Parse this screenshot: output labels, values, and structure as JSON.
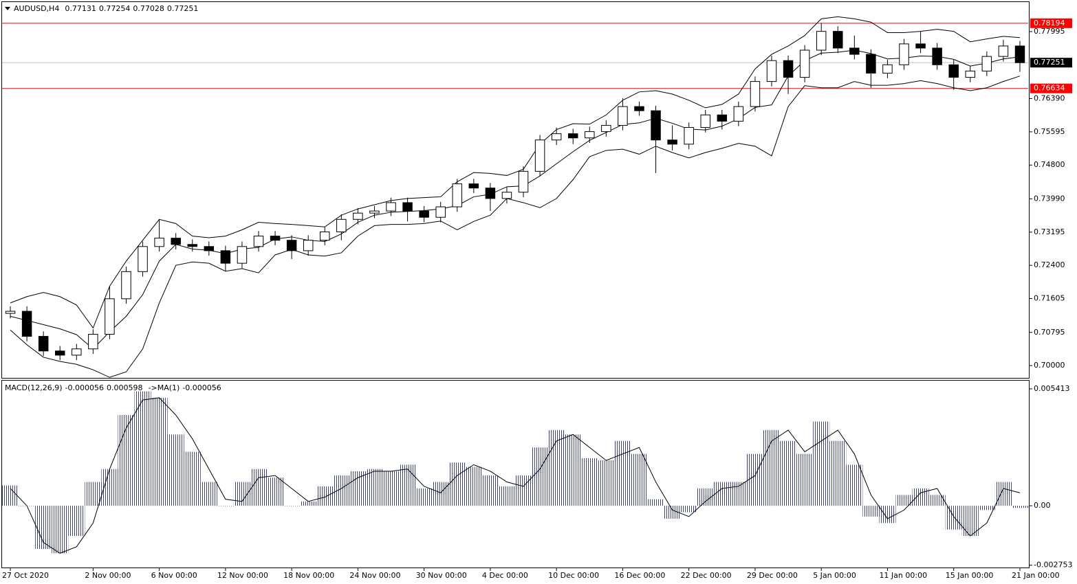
{
  "chart_data": [
    {
      "type": "candlestick",
      "title": "AUDUSD,H4",
      "quote": [
        0.77131,
        0.77254,
        0.77028,
        0.77251
      ],
      "categories": [
        "27 Oct 2020",
        null,
        null,
        null,
        null,
        "2 Nov 00:00",
        null,
        null,
        null,
        "6 Nov 00:00",
        null,
        null,
        null,
        "12 Nov 00:00",
        null,
        null,
        null,
        "18 Nov 00:00",
        null,
        null,
        null,
        "24 Nov 00:00",
        null,
        null,
        null,
        "30 Nov 00:00",
        null,
        null,
        null,
        "4 Dec 00:00",
        null,
        null,
        null,
        "10 Dec 00:00",
        null,
        null,
        null,
        "16 Dec 00:00",
        null,
        null,
        null,
        "22 Dec 00:00",
        null,
        null,
        null,
        "29 Dec 00:00",
        null,
        null,
        null,
        "5 Jan 00:00",
        null,
        null,
        null,
        "11 Jan 00:00",
        null,
        null,
        null,
        "15 Jan 00:00",
        null,
        null,
        null,
        "21 Jan 00:00"
      ],
      "open": [
        0.7125,
        0.713,
        0.707,
        0.7035,
        0.7025,
        0.704,
        0.7075,
        0.716,
        0.7225,
        0.7285,
        0.7305,
        0.729,
        0.7285,
        0.7275,
        0.7245,
        0.7285,
        0.731,
        0.73,
        0.7275,
        0.73,
        0.732,
        0.735,
        0.7365,
        0.737,
        0.739,
        0.737,
        0.7355,
        0.738,
        0.7435,
        0.7425,
        0.74,
        0.7415,
        0.7465,
        0.754,
        0.7555,
        0.7545,
        0.756,
        0.7575,
        0.762,
        0.761,
        0.754,
        0.753,
        0.757,
        0.76,
        0.7585,
        0.762,
        0.768,
        0.773,
        0.769,
        0.7755,
        0.78,
        0.776,
        0.7745,
        0.77,
        0.772,
        0.777,
        0.776,
        0.772,
        0.769,
        0.7705,
        0.774,
        0.7765
      ],
      "high": [
        0.7142,
        0.7142,
        0.7082,
        0.7047,
        0.7052,
        0.7087,
        0.719,
        0.7237,
        0.7297,
        0.735,
        0.7317,
        0.7302,
        0.7297,
        0.7287,
        0.7297,
        0.7322,
        0.7322,
        0.7312,
        0.7312,
        0.7332,
        0.7362,
        0.7377,
        0.7382,
        0.7402,
        0.7402,
        0.7382,
        0.7392,
        0.7447,
        0.7447,
        0.7437,
        0.7427,
        0.7477,
        0.7552,
        0.757,
        0.7567,
        0.7572,
        0.7587,
        0.764,
        0.7632,
        0.7622,
        0.7575,
        0.7582,
        0.7612,
        0.7612,
        0.7632,
        0.7692,
        0.7742,
        0.7742,
        0.7767,
        0.782,
        0.7812,
        0.779,
        0.7757,
        0.7732,
        0.7782,
        0.78,
        0.7772,
        0.7732,
        0.7717,
        0.7752,
        0.778,
        0.7777
      ],
      "low": [
        0.7113,
        0.7058,
        0.7023,
        0.7013,
        0.7013,
        0.7028,
        0.7063,
        0.7148,
        0.7213,
        0.7273,
        0.7278,
        0.7273,
        0.7263,
        0.7225,
        0.7233,
        0.7273,
        0.7288,
        0.7255,
        0.7263,
        0.7288,
        0.73,
        0.7338,
        0.7353,
        0.7358,
        0.7345,
        0.7343,
        0.7343,
        0.7368,
        0.7413,
        0.737,
        0.7388,
        0.7403,
        0.7453,
        0.7528,
        0.753,
        0.7533,
        0.7548,
        0.7563,
        0.7598,
        0.7461,
        0.7515,
        0.7518,
        0.7558,
        0.7565,
        0.7573,
        0.7608,
        0.7668,
        0.765,
        0.7678,
        0.7743,
        0.7748,
        0.7733,
        0.7665,
        0.7688,
        0.7708,
        0.7748,
        0.7708,
        0.766,
        0.7678,
        0.7693,
        0.7728,
        0.7703
      ],
      "close": [
        0.713,
        0.707,
        0.7035,
        0.7025,
        0.704,
        0.7075,
        0.716,
        0.7225,
        0.7285,
        0.7305,
        0.729,
        0.7285,
        0.7275,
        0.7245,
        0.7285,
        0.731,
        0.73,
        0.7275,
        0.73,
        0.732,
        0.735,
        0.7365,
        0.737,
        0.739,
        0.737,
        0.7355,
        0.738,
        0.7435,
        0.7425,
        0.74,
        0.7415,
        0.7465,
        0.754,
        0.7555,
        0.7545,
        0.756,
        0.7575,
        0.762,
        0.761,
        0.754,
        0.753,
        0.757,
        0.76,
        0.7585,
        0.762,
        0.768,
        0.773,
        0.769,
        0.7755,
        0.78,
        0.776,
        0.7745,
        0.77,
        0.772,
        0.777,
        0.776,
        0.772,
        0.769,
        0.7705,
        0.774,
        0.7765,
        0.7725
      ],
      "bands": {
        "upper": [
          0.715,
          0.7165,
          0.7175,
          0.7165,
          0.7145,
          0.709,
          0.719,
          0.725,
          0.73,
          0.735,
          0.734,
          0.731,
          0.7306,
          0.731,
          0.7325,
          0.7343,
          0.734,
          0.7338,
          0.7335,
          0.7332,
          0.736,
          0.7375,
          0.7385,
          0.7395,
          0.74,
          0.7402,
          0.7404,
          0.744,
          0.7462,
          0.746,
          0.7455,
          0.747,
          0.753,
          0.7565,
          0.7579,
          0.7578,
          0.76,
          0.7635,
          0.7655,
          0.7658,
          0.765,
          0.7635,
          0.7617,
          0.7625,
          0.765,
          0.771,
          0.7745,
          0.7765,
          0.779,
          0.783,
          0.7835,
          0.783,
          0.7822,
          0.7797,
          0.7797,
          0.78,
          0.7805,
          0.78,
          0.7775,
          0.7782,
          0.7788,
          0.7785
        ],
        "middle": [
          0.7118,
          0.7108,
          0.7098,
          0.7088,
          0.7074,
          0.704,
          0.7081,
          0.7118,
          0.717,
          0.725,
          0.729,
          0.7279,
          0.7276,
          0.7268,
          0.7279,
          0.7283,
          0.7303,
          0.7308,
          0.73,
          0.7297,
          0.7315,
          0.7343,
          0.736,
          0.7367,
          0.7369,
          0.7371,
          0.7375,
          0.7383,
          0.7404,
          0.741,
          0.7428,
          0.743,
          0.7454,
          0.7483,
          0.7512,
          0.7539,
          0.7558,
          0.7577,
          0.7581,
          0.7592,
          0.758,
          0.7566,
          0.7564,
          0.7573,
          0.7591,
          0.7618,
          0.7624,
          0.7693,
          0.773,
          0.7748,
          0.775,
          0.7755,
          0.7747,
          0.7734,
          0.7736,
          0.7741,
          0.774,
          0.7733,
          0.7717,
          0.7724,
          0.7734,
          0.7739
        ],
        "lower": [
          0.7085,
          0.705,
          0.702,
          0.701,
          0.7003,
          0.699,
          0.6972,
          0.6985,
          0.704,
          0.715,
          0.724,
          0.7248,
          0.7245,
          0.7226,
          0.7232,
          0.7222,
          0.7265,
          0.7278,
          0.7265,
          0.7262,
          0.727,
          0.731,
          0.7335,
          0.7338,
          0.7338,
          0.734,
          0.7346,
          0.7325,
          0.7345,
          0.736,
          0.74,
          0.739,
          0.7378,
          0.74,
          0.7445,
          0.75,
          0.7515,
          0.7518,
          0.7506,
          0.7525,
          0.751,
          0.7497,
          0.751,
          0.752,
          0.7532,
          0.7525,
          0.7502,
          0.762,
          0.767,
          0.7665,
          0.7665,
          0.768,
          0.7671,
          0.7671,
          0.7675,
          0.7682,
          0.7675,
          0.7665,
          0.7658,
          0.7665,
          0.768,
          0.7693
        ]
      },
      "levels": [
        {
          "value": 0.78194,
          "color": "#ff0000"
        },
        {
          "value": 0.76634,
          "color": "#ff0000"
        }
      ],
      "last_price": 0.77251,
      "ylim": [
        0.69706,
        0.78701
      ],
      "yticks": [
        0.77995,
        {
          "value": 0.7639,
          "label": "0.76390"
        },
        0.75595,
        {
          "value": 0.748,
          "label": "0.74800"
        },
        {
          "value": 0.7399,
          "label": "0.73990"
        },
        0.73195,
        {
          "value": 0.724,
          "label": "0.72400"
        },
        0.71605,
        0.70795,
        {
          "value": 0.7,
          "label": "0.70000"
        }
      ]
    },
    {
      "type": "macd",
      "title": "MACD(12,26,9)",
      "readout": [
        -5.6e-05,
        0.000598
      ],
      "signal_title": "->MA(1)",
      "signal_readout": -5.6e-05,
      "values": [
        0.00094,
        0,
        -0.002,
        -0.0022,
        -0.0014,
        0.0011,
        0.0017,
        0.0042,
        0.0053,
        0.005,
        0.0033,
        0.0025,
        0.0011,
        0,
        0.0011,
        0.0017,
        0.0013,
        0,
        0.0002,
        0.0009,
        0.0014,
        0.0016,
        0.0017,
        0.0016,
        0.0019,
        0.0008,
        0.0011,
        0.002,
        0.0018,
        0.0014,
        0.0009,
        0.0014,
        0.0027,
        0.0035,
        0.0033,
        0.0022,
        0.0021,
        0.003,
        0.0024,
        0.0003,
        -0.0006,
        -0.0003,
        0.0008,
        0.0011,
        0.0011,
        0.0024,
        0.0035,
        0.003,
        0.0024,
        0.0039,
        0.003,
        0.0019,
        -0.0005,
        -0.0008,
        0.0005,
        0.0008,
        0.0005,
        -0.0011,
        -0.0014,
        -0.0002,
        0.0011,
        -0.0001
      ],
      "signal": [
        0.0008,
        0,
        -0.0017,
        -0.0022,
        -0.0019,
        -0.0008,
        0.0017,
        0.0036,
        0.0049,
        0.005,
        0.0042,
        0.0031,
        0.0017,
        0.0003,
        0.0002,
        0.0013,
        0.0014,
        0.0008,
        0.0002,
        0.0004,
        0.0008,
        0.0013,
        0.0016,
        0.0016,
        0.0017,
        0.0009,
        0.0006,
        0.0014,
        0.0019,
        0.0016,
        0.0011,
        0.0009,
        0.0017,
        0.003,
        0.0033,
        0.0027,
        0.0021,
        0.0024,
        0.0027,
        0.0011,
        -0.0002,
        -0.0005,
        0.0002,
        0.0008,
        0.0009,
        0.0014,
        0.003,
        0.0035,
        0.0025,
        0.003,
        0.0035,
        0.0024,
        0.0005,
        -0.0006,
        -0.0002,
        0.0006,
        0.0008,
        -0.0005,
        -0.0014,
        -0.0008,
        0.0008,
        0.0006
      ],
      "ylim": [
        -0.00286,
        0.00573
      ],
      "yticks": [
        0.005413,
        {
          "value": 0,
          "label": "0.00"
        },
        -0.002753
      ]
    }
  ]
}
